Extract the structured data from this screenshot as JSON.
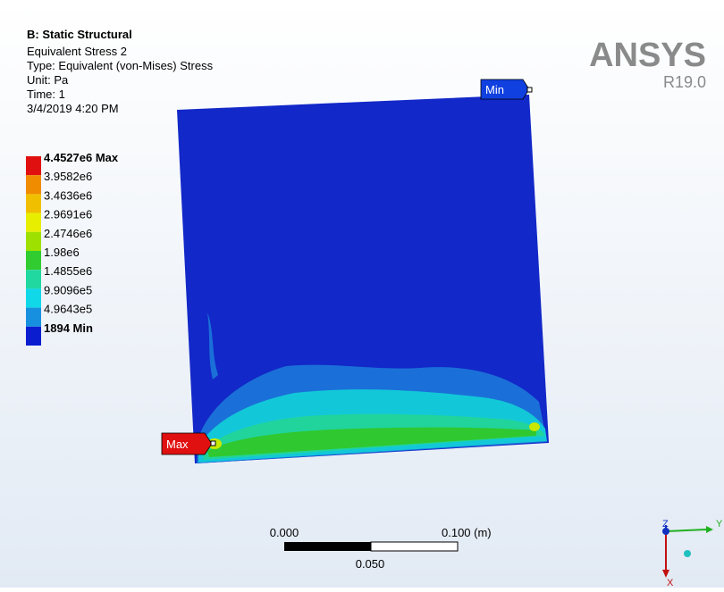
{
  "header": {
    "title": "B: Static Structural",
    "lines": [
      "Equivalent Stress 2",
      "Type: Equivalent (von-Mises) Stress",
      "Unit: Pa",
      "Time: 1",
      "3/4/2019 4:20 PM"
    ]
  },
  "legend": [
    {
      "label": "4.4527e6 Max",
      "color": "#e01010"
    },
    {
      "label": "3.9582e6",
      "color": "#f08c00"
    },
    {
      "label": "3.4636e6",
      "color": "#f0c000"
    },
    {
      "label": "2.9691e6",
      "color": "#e8ee00"
    },
    {
      "label": "2.4746e6",
      "color": "#9ee000"
    },
    {
      "label": "1.98e6",
      "color": "#30cc30"
    },
    {
      "label": "1.4855e6",
      "color": "#20d8a0"
    },
    {
      "label": "9.9096e5",
      "color": "#10d8e8"
    },
    {
      "label": "4.9643e5",
      "color": "#1890e0"
    },
    {
      "label": "1894 Min",
      "color": "#0a1ed0"
    }
  ],
  "logo": {
    "name": "ANSYS",
    "version": "R19.0"
  },
  "probes": {
    "min": "Min",
    "max": "Max"
  },
  "scale_bar": {
    "left": "0.000",
    "right": "0.100 (m)",
    "middle": "0.050"
  },
  "triad": {
    "y": "Y",
    "z": "Z",
    "x": "X"
  }
}
